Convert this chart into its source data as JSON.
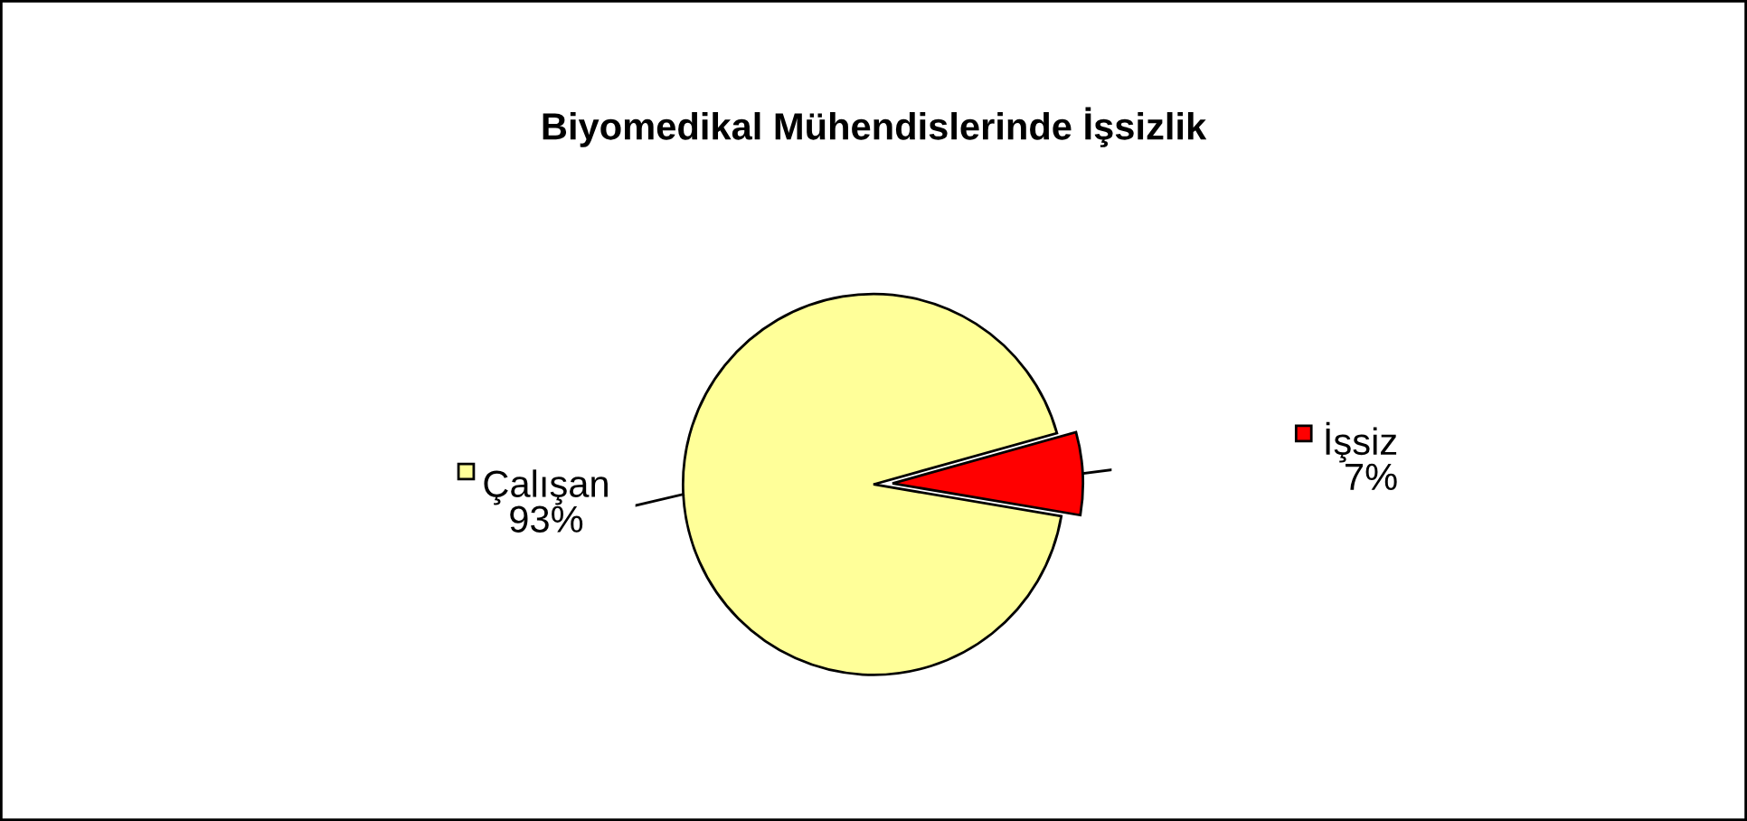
{
  "chart_data": {
    "type": "pie",
    "title": "Biyomedikal Mühendislerinde İşsizlik",
    "categories": [
      "Çalışan",
      "İşsiz"
    ],
    "values": [
      93,
      7
    ],
    "colors": [
      "#ffff99",
      "#ff0000"
    ],
    "value_labels": [
      "93%",
      "7%"
    ],
    "legend": "right"
  }
}
